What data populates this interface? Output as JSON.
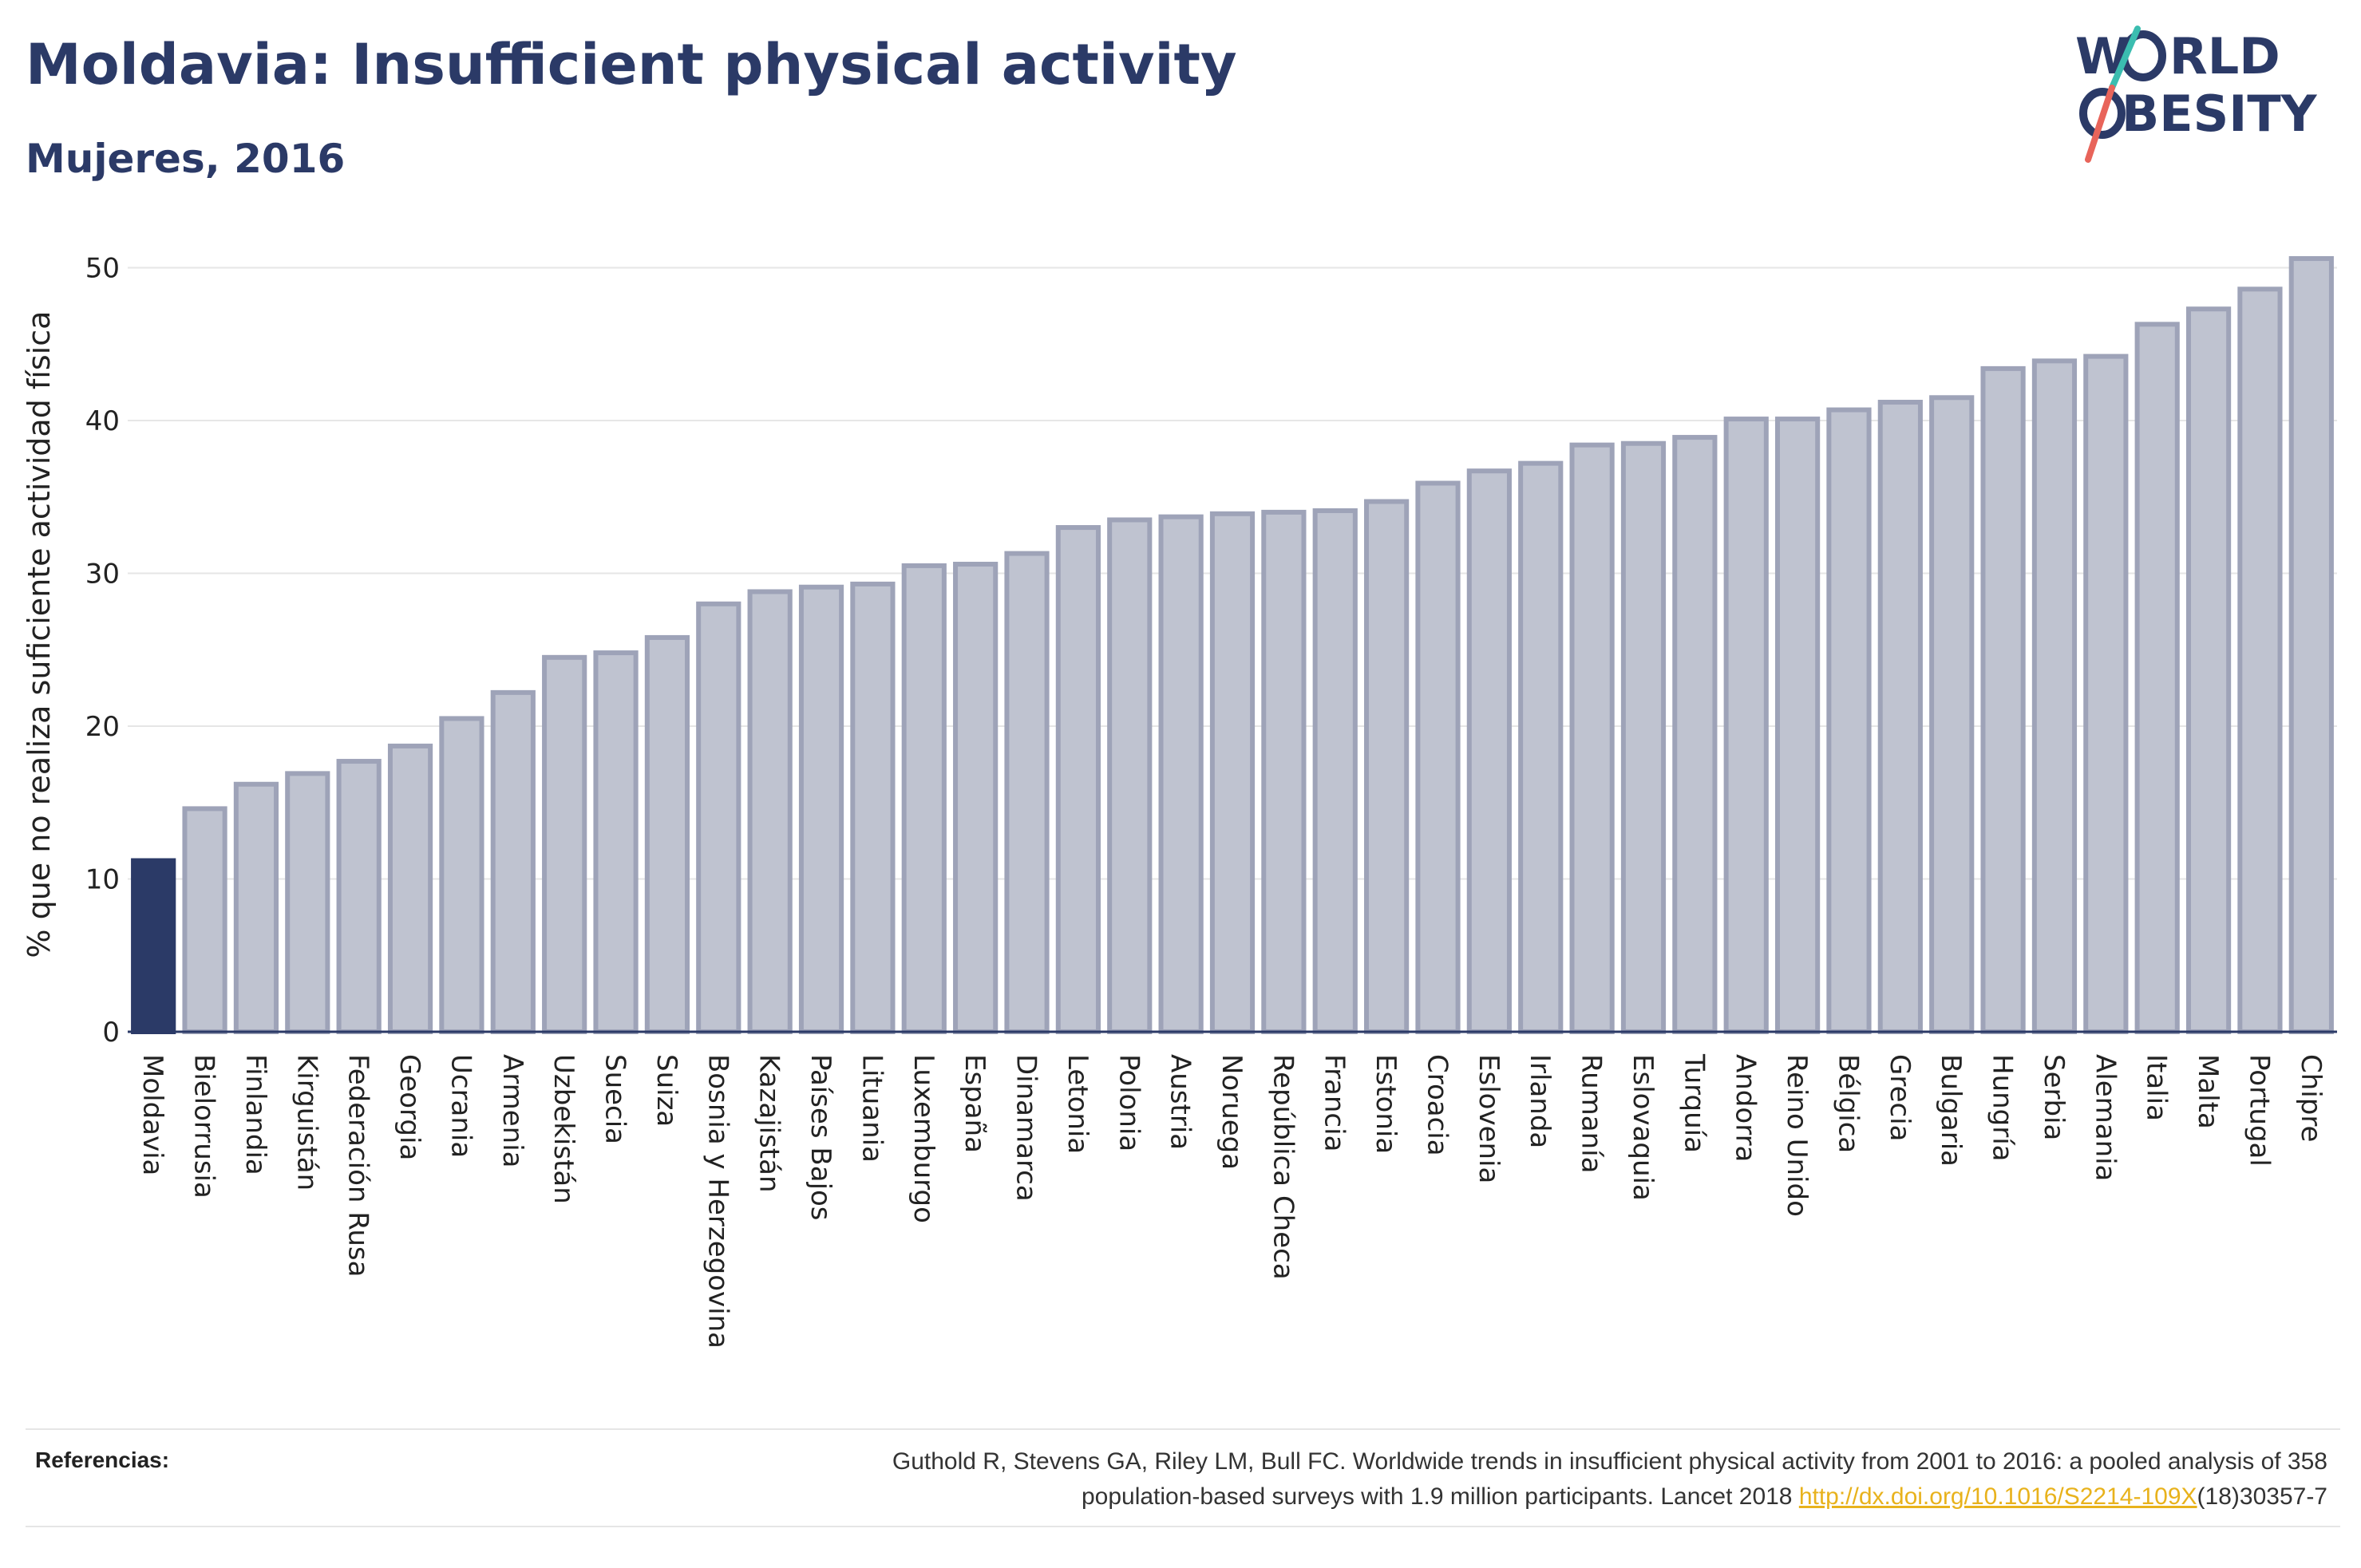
{
  "header": {
    "title": "Moldavia: Insufficient physical activity",
    "subtitle": "Mujeres, 2016"
  },
  "logo": {
    "line1": "W RLD",
    "line2": "BESITY",
    "text": "WORLD OBESITY"
  },
  "colors": {
    "highlight": "#2b3a67",
    "bar_fill": "#bfc3d0",
    "bar_stroke": "#9ea3b8",
    "title": "#2b3a67",
    "logo_teal": "#3bbdb0",
    "logo_coral": "#e8645a",
    "link": "#e8b21c"
  },
  "chart_data": {
    "type": "bar",
    "title": "",
    "xlabel": "",
    "ylabel": "% que no realiza suficiente actividad física",
    "ylim": [
      0,
      52
    ],
    "yticks": [
      0,
      10,
      20,
      30,
      40,
      50
    ],
    "grid": true,
    "highlight_category": "Moldavia",
    "categories": [
      "Moldavia",
      "Bielorrusia",
      "Finlandia",
      "Kirguistán",
      "Federación Rusa",
      "Georgia",
      "Ucrania",
      "Armenia",
      "Uzbekistán",
      "Suecia",
      "Suiza",
      "Bosnia y Herzegovina",
      "Kazajistán",
      "Países Bajos",
      "Lituania",
      "Luxemburgo",
      "España",
      "Dinamarca",
      "Letonia",
      "Polonia",
      "Austria",
      "Noruega",
      "República Checa",
      "Francia",
      "Estonia",
      "Croacia",
      "Eslovenia",
      "Irlanda",
      "Rumanía",
      "Eslovaquia",
      "Turquía",
      "Andorra",
      "Reino Unido",
      "Bélgica",
      "Grecia",
      "Bulgaria",
      "Hungría",
      "Serbia",
      "Alemania",
      "Italia",
      "Malta",
      "Portugal",
      "Chipre"
    ],
    "values": [
      11.2,
      14.6,
      16.2,
      16.9,
      17.7,
      18.7,
      20.5,
      22.2,
      24.5,
      24.8,
      25.8,
      28.0,
      28.8,
      29.1,
      29.3,
      30.5,
      30.6,
      31.3,
      33.0,
      33.5,
      33.7,
      33.9,
      34.0,
      34.1,
      34.7,
      35.9,
      36.7,
      37.2,
      38.4,
      38.5,
      38.9,
      40.1,
      40.1,
      40.7,
      41.2,
      41.5,
      43.4,
      43.9,
      44.2,
      46.3,
      47.3,
      48.6,
      50.6
    ]
  },
  "references": {
    "label": "Referencias:",
    "line1": "Guthold R, Stevens GA, Riley LM, Bull FC. Worldwide trends in insufficient physical activity from 2001 to 2016: a pooled analysis of 358",
    "line2_prefix": "population-based surveys with 1.9 million participants. Lancet 2018 ",
    "link": "http://dx.doi.org/10.1016/S2214-109X",
    "line2_suffix": "(18)30357-7"
  }
}
